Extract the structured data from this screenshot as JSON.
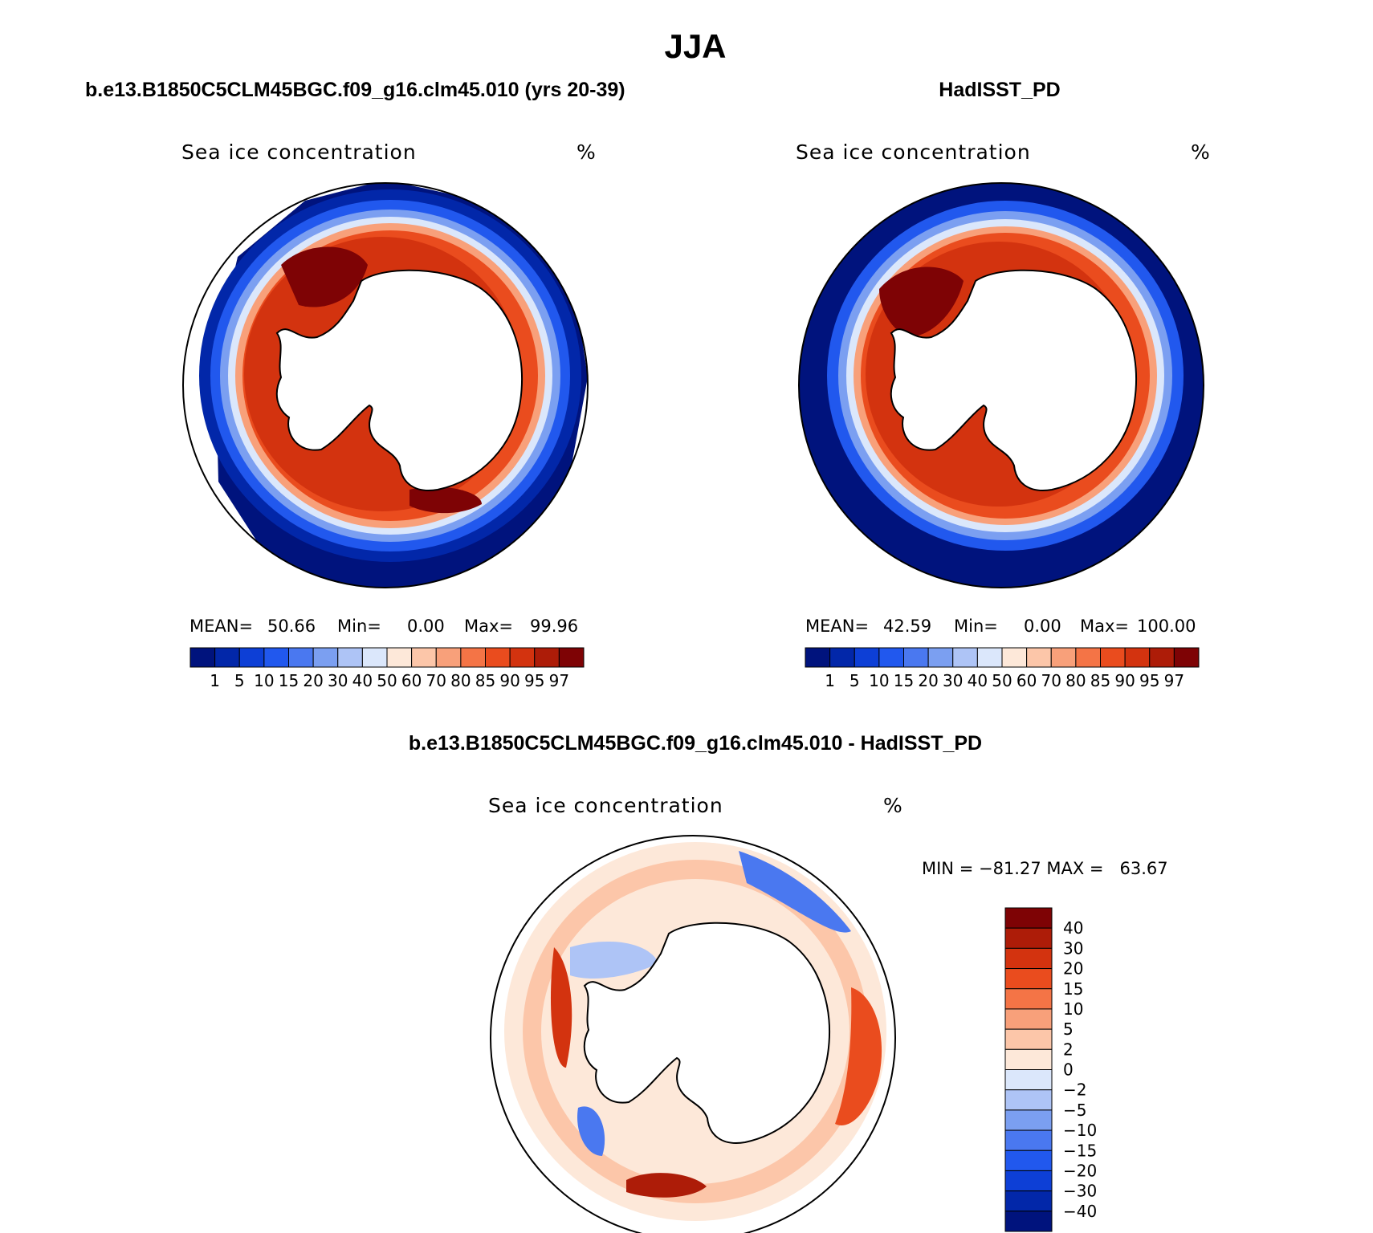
{
  "title": "JJA",
  "panels": [
    {
      "heading": "b.e13.B1850C5CLM45BGC.f09_g16.clm45.010 (yrs 20-39)",
      "field_label": "Sea ice concentration",
      "units": "%",
      "stats": {
        "mean_label": "MEAN=",
        "mean": "50.66",
        "min_label": "Min=",
        "min": "0.00",
        "max_label": "Max=",
        "max": "99.96"
      }
    },
    {
      "heading": "HadISST_PD",
      "field_label": "Sea ice concentration",
      "units": "%",
      "stats": {
        "mean_label": "MEAN=",
        "mean": "42.59",
        "min_label": "Min=",
        "min": "0.00",
        "max_label": "Max=",
        "max": "100.00"
      }
    },
    {
      "heading": "b.e13.B1850C5CLM45BGC.f09_g16.clm45.010 - HadISST_PD",
      "field_label": "Sea ice concentration",
      "units": "%",
      "stats": {
        "text": "MIN = −81.27 MAX =   63.67"
      }
    }
  ],
  "conc_colorbar": {
    "levels": [
      "1",
      "5",
      "10",
      "15",
      "20",
      "30",
      "40",
      "50",
      "60",
      "70",
      "80",
      "85",
      "90",
      "95",
      "97"
    ],
    "colors": [
      "#00137d",
      "#0227a9",
      "#0d3fd6",
      "#2158ee",
      "#4a78f0",
      "#7b9ff1",
      "#aec4f6",
      "#dbe7fb",
      "#fde8d9",
      "#fcc6a9",
      "#f8a07a",
      "#f47446",
      "#ea4c1e",
      "#d3330f",
      "#ad1c08",
      "#7e0305"
    ]
  },
  "diff_colorbar": {
    "levels": [
      "40",
      "30",
      "20",
      "15",
      "10",
      "5",
      "2",
      "0",
      "−2",
      "−5",
      "−10",
      "−15",
      "−20",
      "−30",
      "−40"
    ],
    "colors": [
      "#7e0305",
      "#ad1c08",
      "#d3330f",
      "#ea4c1e",
      "#f47446",
      "#f8a07a",
      "#fcc6a9",
      "#fde8d9",
      "#dbe7fb",
      "#aec4f6",
      "#7b9ff1",
      "#4a78f0",
      "#2158ee",
      "#0d3fd6",
      "#0227a9",
      "#00137d"
    ]
  }
}
